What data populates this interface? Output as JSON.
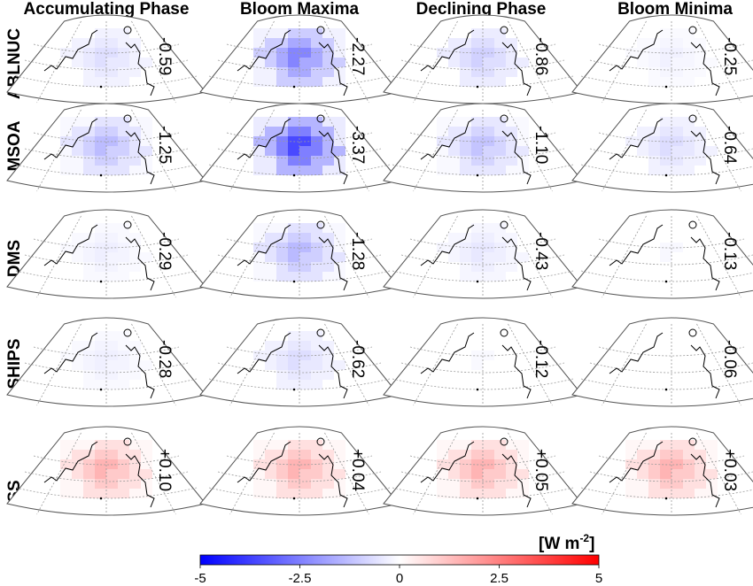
{
  "columns": [
    "Accumulating Phase",
    "Bloom Maxima",
    "Declining Phase",
    "Bloom Minima"
  ],
  "rows": [
    {
      "label": "ABLNUC",
      "values": [
        "-0.59",
        "-2.27",
        "-0.86",
        "-0.25"
      ]
    },
    {
      "label": "MSOA",
      "values": [
        "-1.25",
        "-3.37",
        "-1.10",
        "-0.64"
      ]
    },
    {
      "label": "DMS",
      "values": [
        "-0.29",
        "-1.28",
        "-0.43",
        "-0.13"
      ]
    },
    {
      "label": "SHIPS",
      "values": [
        "-0.28",
        "-0.62",
        "-0.12",
        "-0.06"
      ]
    },
    {
      "label": "SS",
      "values": [
        "+0.10",
        "+0.04",
        "+0.05",
        "+0.03"
      ]
    }
  ],
  "colorbar": {
    "unit_base": "[W m",
    "unit_sup": "-2",
    "unit_close": "]",
    "ticks": [
      "-5",
      "-2.5",
      "0",
      "2.5",
      "5"
    ],
    "range": [
      -5,
      5
    ],
    "colors": {
      "low": "#0000ff",
      "mid": "#ffffff",
      "high": "#ff0000"
    }
  }
}
